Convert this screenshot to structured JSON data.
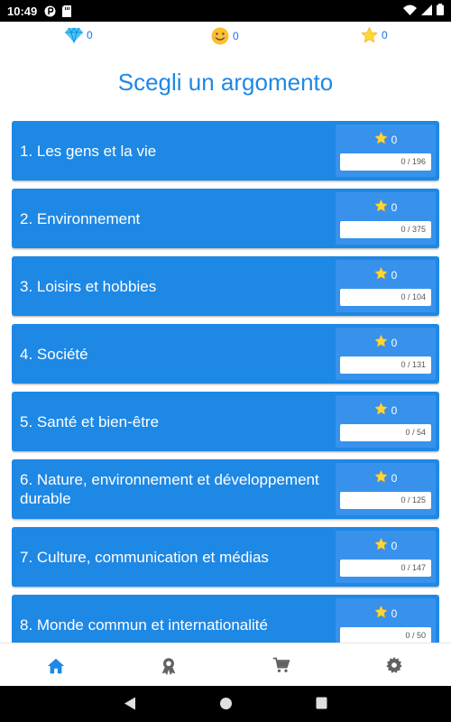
{
  "status_bar": {
    "time": "10:49"
  },
  "stats": {
    "gems": "0",
    "smiles": "0",
    "stars": "0"
  },
  "title": "Scegli un argomento",
  "topics": [
    {
      "label": "1. Les gens et la vie",
      "stars": "0",
      "progress_text": "0 / 196",
      "progress": 0
    },
    {
      "label": "2. Environnement",
      "stars": "0",
      "progress_text": "0 / 375",
      "progress": 0
    },
    {
      "label": "3. Loisirs et hobbies",
      "stars": "0",
      "progress_text": "0 / 104",
      "progress": 0
    },
    {
      "label": "4. Société",
      "stars": "0",
      "progress_text": "0 / 131",
      "progress": 0
    },
    {
      "label": "5. Santé et bien-être",
      "stars": "0",
      "progress_text": "0 / 54",
      "progress": 0
    },
    {
      "label": "6. Nature, environnement et développement durable",
      "stars": "0",
      "progress_text": "0 / 125",
      "progress": 0
    },
    {
      "label": "7. Culture, communication et médias",
      "stars": "0",
      "progress_text": "0 / 147",
      "progress": 0
    },
    {
      "label": "8. Monde commun et internationalité",
      "stars": "0",
      "progress_text": "0 / 50",
      "progress": 0
    }
  ],
  "bottom_nav": [
    {
      "name": "home-icon",
      "active": true
    },
    {
      "name": "award-icon",
      "active": false
    },
    {
      "name": "cart-icon",
      "active": false
    },
    {
      "name": "settings-icon",
      "active": false
    }
  ],
  "colors": {
    "accent": "#1e88e5",
    "card": "#1e88e5",
    "score_panel": "#3892ec",
    "nav_active": "#1e88e5",
    "nav_inactive": "#616161"
  }
}
